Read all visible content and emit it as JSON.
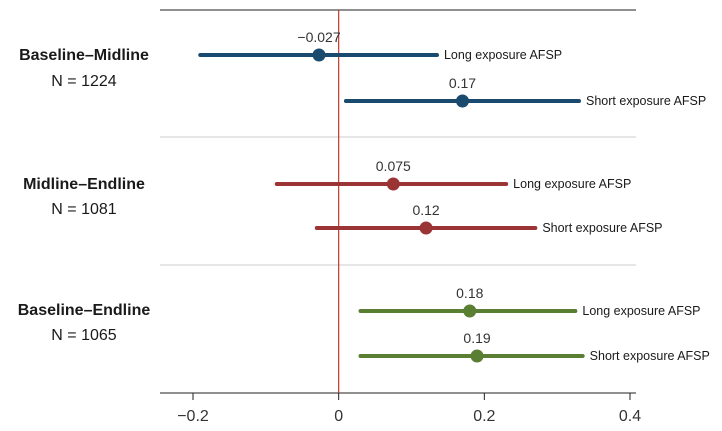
{
  "chart_data": {
    "type": "forest",
    "xlim": [
      -0.25,
      0.4
    ],
    "xticks": [
      -0.2,
      0,
      0.2,
      0.4
    ],
    "xtick_labels": [
      "−0.2",
      "0",
      "0.2",
      "0.4"
    ],
    "reference_line": 0,
    "reference_line_color": "#c0392b",
    "grid": false,
    "groups": [
      {
        "title": "Baseline–Midline",
        "n_label": "N = 1224",
        "color": "#1a4a6e",
        "rows": [
          {
            "series": "Long exposure AFSP",
            "estimate": -0.027,
            "estimate_label": "−0.027",
            "ci": [
              -0.19,
              0.135
            ]
          },
          {
            "series": "Short exposure AFSP",
            "estimate": 0.17,
            "estimate_label": "0.17",
            "ci": [
              0.01,
              0.33
            ]
          }
        ]
      },
      {
        "title": "Midline–Endline",
        "n_label": "N = 1081",
        "color": "#9b3535",
        "rows": [
          {
            "series": "Long exposure AFSP",
            "estimate": 0.075,
            "estimate_label": "0.075",
            "ci": [
              -0.085,
              0.23
            ]
          },
          {
            "series": "Short exposure AFSP",
            "estimate": 0.12,
            "estimate_label": "0.12",
            "ci": [
              -0.03,
              0.27
            ]
          }
        ]
      },
      {
        "title": "Baseline–Endline",
        "n_label": "N = 1065",
        "color": "#5a7f33",
        "rows": [
          {
            "series": "Long exposure AFSP",
            "estimate": 0.18,
            "estimate_label": "0.18",
            "ci": [
              0.03,
              0.325
            ]
          },
          {
            "series": "Short exposure AFSP",
            "estimate": 0.19,
            "estimate_label": "0.19",
            "ci": [
              0.03,
              0.335
            ]
          }
        ]
      }
    ]
  }
}
